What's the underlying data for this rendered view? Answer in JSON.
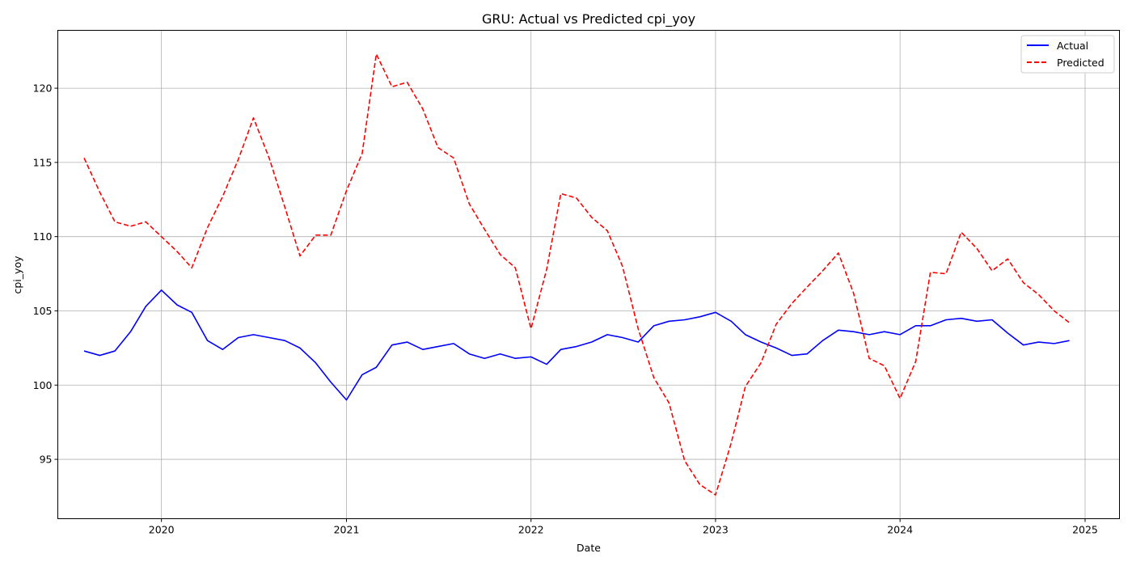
{
  "chart_data": {
    "type": "line",
    "title": "GRU: Actual vs Predicted cpi_yoy",
    "xlabel": "Date",
    "ylabel": "cpi_yoy",
    "x_axis_type": "date",
    "xlim": [
      "2019-06-10",
      "2025-03-10"
    ],
    "ylim": [
      91.0,
      123.9
    ],
    "xticks": [
      "2020",
      "2021",
      "2022",
      "2023",
      "2024",
      "2025"
    ],
    "yticks": [
      95,
      100,
      105,
      110,
      115,
      120
    ],
    "grid": true,
    "legend_position": "top-right",
    "x": [
      "2019-08-01",
      "2019-09-01",
      "2019-10-01",
      "2019-11-01",
      "2019-12-01",
      "2020-01-01",
      "2020-02-01",
      "2020-03-01",
      "2020-04-01",
      "2020-05-01",
      "2020-06-01",
      "2020-07-01",
      "2020-08-01",
      "2020-09-01",
      "2020-10-01",
      "2020-11-01",
      "2020-12-01",
      "2021-01-01",
      "2021-02-01",
      "2021-03-01",
      "2021-04-01",
      "2021-05-01",
      "2021-06-01",
      "2021-07-01",
      "2021-08-01",
      "2021-09-01",
      "2021-10-01",
      "2021-11-01",
      "2021-12-01",
      "2022-01-01",
      "2022-02-01",
      "2022-03-01",
      "2022-04-01",
      "2022-05-01",
      "2022-06-01",
      "2022-07-01",
      "2022-08-01",
      "2022-09-01",
      "2022-10-01",
      "2022-11-01",
      "2022-12-01",
      "2023-01-01",
      "2023-02-01",
      "2023-03-01",
      "2023-04-01",
      "2023-05-01",
      "2023-06-01",
      "2023-07-01",
      "2023-08-01",
      "2023-09-01",
      "2023-10-01",
      "2023-11-01",
      "2023-12-01",
      "2024-01-01",
      "2024-02-01",
      "2024-03-01",
      "2024-04-01",
      "2024-05-01",
      "2024-06-01",
      "2024-07-01",
      "2024-08-01",
      "2024-09-01",
      "2024-10-01",
      "2024-11-01",
      "2024-12-01"
    ],
    "series": [
      {
        "name": "Actual",
        "color": "#0000ff",
        "style": "solid",
        "values": [
          102.3,
          102.0,
          102.3,
          103.6,
          105.3,
          106.4,
          105.4,
          104.9,
          103.0,
          102.4,
          103.2,
          103.4,
          103.2,
          103.0,
          102.5,
          101.5,
          100.2,
          99.0,
          100.7,
          101.2,
          102.7,
          102.9,
          102.4,
          102.6,
          102.8,
          102.1,
          101.8,
          102.1,
          101.8,
          101.9,
          101.4,
          102.4,
          102.6,
          102.9,
          103.4,
          103.2,
          102.9,
          104.0,
          104.3,
          104.4,
          104.6,
          104.9,
          104.3,
          103.4,
          102.9,
          102.5,
          102.0,
          102.1,
          103.0,
          103.7,
          103.6,
          103.4,
          103.6,
          103.4,
          104.0,
          104.0,
          104.4,
          104.5,
          104.3,
          104.4,
          103.5,
          102.7,
          102.9,
          102.8,
          103.0
        ]
      },
      {
        "name": "Predicted",
        "color": "#ff0000",
        "style": "dashed",
        "values": [
          115.3,
          113.0,
          111.0,
          110.7,
          111.0,
          110.0,
          109.0,
          107.9,
          110.6,
          112.7,
          115.2,
          118.0,
          115.3,
          112.0,
          108.7,
          110.1,
          110.1,
          113.1,
          115.6,
          122.3,
          120.1,
          120.4,
          118.6,
          116.0,
          115.3,
          112.2,
          110.5,
          108.8,
          107.9,
          103.8,
          107.8,
          112.9,
          112.6,
          111.3,
          110.4,
          108.0,
          103.8,
          100.5,
          98.8,
          94.9,
          93.3,
          92.6,
          96.1,
          99.9,
          101.5,
          104.1,
          105.5,
          106.6,
          107.7,
          108.9,
          106.2,
          101.8,
          101.3,
          99.1,
          101.6,
          107.6,
          107.5,
          110.3,
          109.2,
          107.7,
          108.5,
          106.9,
          106.1,
          105.0,
          104.2
        ]
      }
    ]
  }
}
